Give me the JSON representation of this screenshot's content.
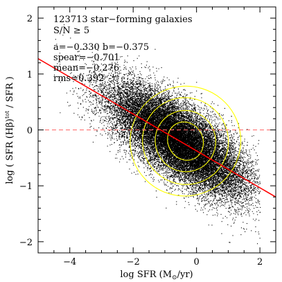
{
  "chart_data": {
    "type": "scatter",
    "xlabel_parts": {
      "pre": "log SFR (M",
      "sub": "⊙",
      "post": "/yr)"
    },
    "ylabel_parts": {
      "pre": "log ( SFR (Hβ)",
      "sup": "tot",
      "post": " / SFR )"
    },
    "xlim": [
      -5,
      2.5
    ],
    "ylim": [
      -2.2,
      2.2
    ],
    "xticks": [
      -4,
      -2,
      0,
      2
    ],
    "xtick_labels": [
      "−4",
      "−2",
      "0",
      "2"
    ],
    "yticks": [
      -2,
      -1,
      0,
      1,
      2
    ],
    "ytick_labels": [
      "−2",
      "−1",
      "0",
      "1",
      "2"
    ],
    "annotations": [
      "123713 star−forming galaxies",
      "S/N ≥ 5",
      "a=−0.330   b=−0.375",
      "spear=−0.701",
      "mean=−0.276",
      "rms=0.392"
    ],
    "fit_line": {
      "slope": -0.33,
      "intercept": -0.375,
      "color": "#ff0000"
    },
    "reference_line": {
      "y": 0,
      "style": "dashed",
      "color": "#ff6666"
    },
    "point_cloud": {
      "n_galaxies": 123713,
      "color": "#000000",
      "x_center": -0.6,
      "x_spread": 1.05,
      "y_relation_slope": -0.33,
      "y_relation_intercept": -0.38,
      "y_scatter": 0.33,
      "x_range": [
        -4.6,
        2.0
      ]
    },
    "contours": {
      "color": "#ffff00",
      "center": [
        -0.35,
        -0.2
      ],
      "levels": [
        {
          "rx": 0.55,
          "ry": 0.35
        },
        {
          "rx": 0.95,
          "ry": 0.55
        },
        {
          "rx": 1.35,
          "ry": 0.78
        },
        {
          "rx": 1.75,
          "ry": 0.98
        }
      ],
      "rotation_deg": -28
    },
    "grid": false
  }
}
